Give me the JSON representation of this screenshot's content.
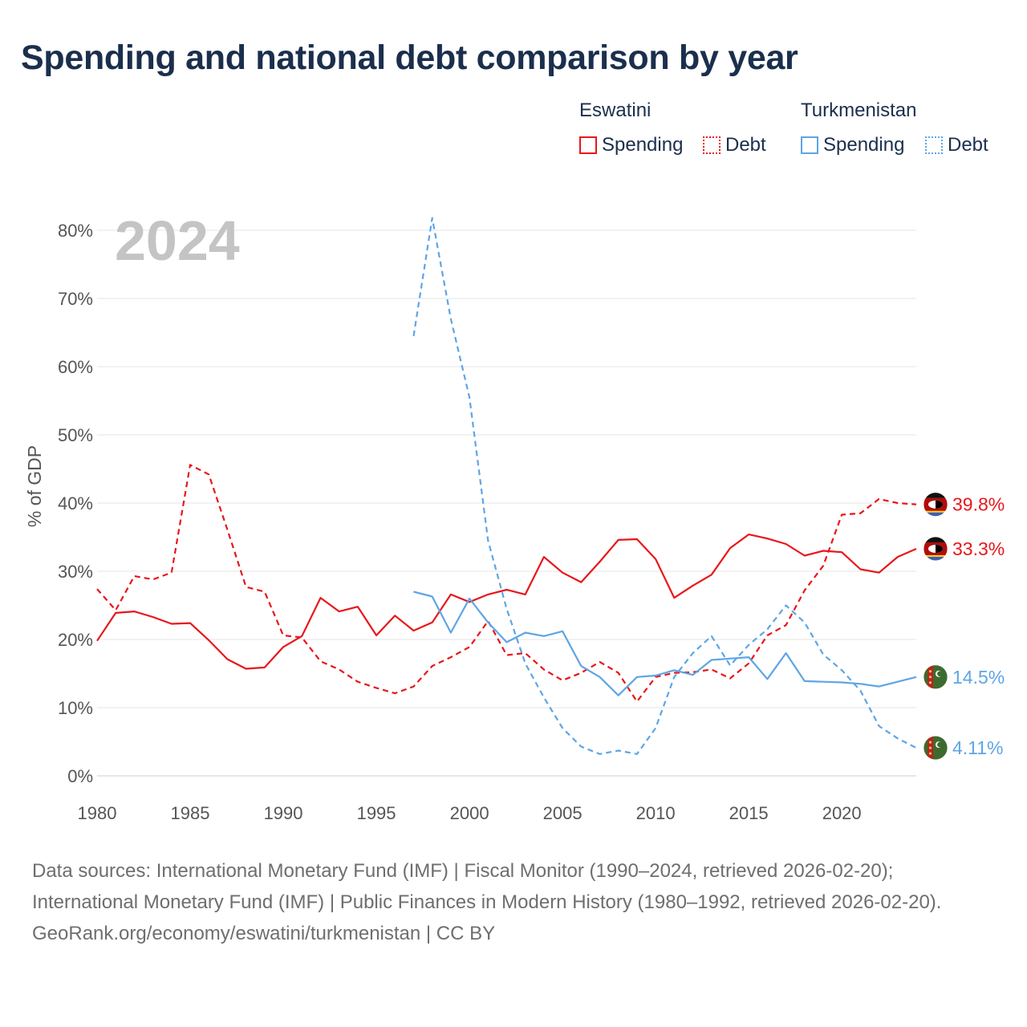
{
  "title": "Spending and national debt comparison by year",
  "legend": {
    "groups": [
      {
        "country": "Eswatini",
        "color": "#e8161b",
        "items": [
          {
            "label": "Spending",
            "style": "solid"
          },
          {
            "label": "Debt",
            "style": "dotted"
          }
        ]
      },
      {
        "country": "Turkmenistan",
        "color": "#5ea5e5",
        "items": [
          {
            "label": "Spending",
            "style": "solid"
          },
          {
            "label": "Debt",
            "style": "dotted"
          }
        ]
      }
    ]
  },
  "chart_data": {
    "type": "line",
    "year_label": "2024",
    "ylabel": "% of GDP",
    "xlabel": "",
    "xlim": [
      1980,
      2024
    ],
    "ylim": [
      0,
      80
    ],
    "x_ticks": [
      "1980",
      "1985",
      "1990",
      "1995",
      "2000",
      "2005",
      "2010",
      "2015",
      "2020"
    ],
    "y_ticks": [
      "0%",
      "10%",
      "20%",
      "30%",
      "40%",
      "50%",
      "60%",
      "70%",
      "80%"
    ],
    "grid": true,
    "series": [
      {
        "name": "Eswatini Spending",
        "country": "Eswatini",
        "metric": "Spending",
        "color": "#e8161b",
        "dashed": false,
        "flag": "eswatini-flag",
        "end_label": "33.3%",
        "points": [
          [
            1980,
            19.8
          ],
          [
            1981,
            23.9
          ],
          [
            1982,
            24.1
          ],
          [
            1983,
            23.3
          ],
          [
            1984,
            22.3
          ],
          [
            1985,
            22.4
          ],
          [
            1986,
            19.9
          ],
          [
            1987,
            17.1
          ],
          [
            1988,
            15.7
          ],
          [
            1989,
            15.9
          ],
          [
            1990,
            18.9
          ],
          [
            1991,
            20.5
          ],
          [
            1992,
            26.1
          ],
          [
            1993,
            24.1
          ],
          [
            1994,
            24.8
          ],
          [
            1995,
            20.6
          ],
          [
            1996,
            23.5
          ],
          [
            1997,
            21.3
          ],
          [
            1998,
            22.5
          ],
          [
            1999,
            26.6
          ],
          [
            2000,
            25.5
          ],
          [
            2001,
            26.6
          ],
          [
            2002,
            27.3
          ],
          [
            2003,
            26.6
          ],
          [
            2004,
            32.1
          ],
          [
            2005,
            29.8
          ],
          [
            2006,
            28.4
          ],
          [
            2007,
            31.4
          ],
          [
            2008,
            34.6
          ],
          [
            2009,
            34.7
          ],
          [
            2010,
            31.8
          ],
          [
            2011,
            26.1
          ],
          [
            2012,
            27.9
          ],
          [
            2013,
            29.5
          ],
          [
            2014,
            33.4
          ],
          [
            2015,
            35.4
          ],
          [
            2016,
            34.8
          ],
          [
            2017,
            34.0
          ],
          [
            2018,
            32.3
          ],
          [
            2019,
            33.0
          ],
          [
            2020,
            32.8
          ],
          [
            2021,
            30.3
          ],
          [
            2022,
            29.8
          ],
          [
            2023,
            32.1
          ],
          [
            2024,
            33.3
          ]
        ]
      },
      {
        "name": "Eswatini Debt",
        "country": "Eswatini",
        "metric": "Debt",
        "color": "#e8161b",
        "dashed": true,
        "flag": "eswatini-flag",
        "end_label": "39.8%",
        "points": [
          [
            1980,
            27.4
          ],
          [
            1981,
            24.3
          ],
          [
            1982,
            29.3
          ],
          [
            1983,
            28.8
          ],
          [
            1984,
            29.8
          ],
          [
            1985,
            45.6
          ],
          [
            1986,
            44.2
          ],
          [
            1987,
            36.1
          ],
          [
            1988,
            27.7
          ],
          [
            1989,
            27.0
          ],
          [
            1990,
            20.6
          ],
          [
            1991,
            20.3
          ],
          [
            1992,
            16.8
          ],
          [
            1993,
            15.6
          ],
          [
            1994,
            13.8
          ],
          [
            1995,
            12.9
          ],
          [
            1996,
            12.1
          ],
          [
            1997,
            13.1
          ],
          [
            1998,
            16.1
          ],
          [
            1999,
            17.4
          ],
          [
            2000,
            18.9
          ],
          [
            2001,
            22.7
          ],
          [
            2002,
            17.7
          ],
          [
            2003,
            18.0
          ],
          [
            2004,
            15.6
          ],
          [
            2005,
            14.0
          ],
          [
            2006,
            15.1
          ],
          [
            2007,
            16.7
          ],
          [
            2008,
            15.1
          ],
          [
            2009,
            10.9
          ],
          [
            2010,
            14.5
          ],
          [
            2011,
            15.1
          ],
          [
            2012,
            15.2
          ],
          [
            2013,
            15.6
          ],
          [
            2014,
            14.3
          ],
          [
            2015,
            16.5
          ],
          [
            2016,
            20.6
          ],
          [
            2017,
            22.1
          ],
          [
            2018,
            27.2
          ],
          [
            2019,
            30.8
          ],
          [
            2020,
            38.3
          ],
          [
            2021,
            38.5
          ],
          [
            2022,
            40.6
          ],
          [
            2023,
            40.0
          ],
          [
            2024,
            39.8
          ]
        ]
      },
      {
        "name": "Turkmenistan Spending",
        "country": "Turkmenistan",
        "metric": "Spending",
        "color": "#5ea5e5",
        "dashed": false,
        "flag": "turkmenistan-flag",
        "end_label": "14.5%",
        "points": [
          [
            1997,
            27.0
          ],
          [
            1998,
            26.3
          ],
          [
            1999,
            21.0
          ],
          [
            2000,
            26.0
          ],
          [
            2001,
            22.5
          ],
          [
            2002,
            19.6
          ],
          [
            2003,
            21.0
          ],
          [
            2004,
            20.5
          ],
          [
            2005,
            21.2
          ],
          [
            2006,
            16.1
          ],
          [
            2007,
            14.5
          ],
          [
            2008,
            11.8
          ],
          [
            2009,
            14.5
          ],
          [
            2010,
            14.7
          ],
          [
            2011,
            15.5
          ],
          [
            2012,
            14.8
          ],
          [
            2013,
            17.0
          ],
          [
            2014,
            17.2
          ],
          [
            2015,
            17.4
          ],
          [
            2016,
            14.2
          ],
          [
            2017,
            18.0
          ],
          [
            2018,
            13.9
          ],
          [
            2019,
            13.8
          ],
          [
            2020,
            13.7
          ],
          [
            2021,
            13.5
          ],
          [
            2022,
            13.1
          ],
          [
            2023,
            13.8
          ],
          [
            2024,
            14.5
          ]
        ]
      },
      {
        "name": "Turkmenistan Debt",
        "country": "Turkmenistan",
        "metric": "Debt",
        "color": "#5ea5e5",
        "dashed": true,
        "flag": "turkmenistan-flag",
        "end_label": "4.11%",
        "points": [
          [
            1997,
            64.5
          ],
          [
            1998,
            81.8
          ],
          [
            1999,
            67.0
          ],
          [
            2000,
            55.5
          ],
          [
            2001,
            34.5
          ],
          [
            2002,
            24.5
          ],
          [
            2003,
            16.5
          ],
          [
            2004,
            11.5
          ],
          [
            2005,
            7.0
          ],
          [
            2006,
            4.3
          ],
          [
            2007,
            3.2
          ],
          [
            2008,
            3.7
          ],
          [
            2009,
            3.2
          ],
          [
            2010,
            7.0
          ],
          [
            2011,
            14.5
          ],
          [
            2012,
            18.0
          ],
          [
            2013,
            20.5
          ],
          [
            2014,
            16.2
          ],
          [
            2015,
            19.2
          ],
          [
            2016,
            21.5
          ],
          [
            2017,
            25.0
          ],
          [
            2018,
            22.5
          ],
          [
            2019,
            17.8
          ],
          [
            2020,
            15.5
          ],
          [
            2021,
            12.5
          ],
          [
            2022,
            7.3
          ],
          [
            2023,
            5.5
          ],
          [
            2024,
            4.11
          ]
        ]
      }
    ]
  },
  "footer": {
    "sources": "Data sources: International Monetary Fund (IMF) | Fiscal Monitor (1990–2024, retrieved 2026-02-20); International Monetary Fund (IMF) | Public Finances in Modern History (1980–1992, retrieved 2026-02-20).",
    "credit": "GeoRank.org/economy/eswatini/turkmenistan | CC BY"
  }
}
